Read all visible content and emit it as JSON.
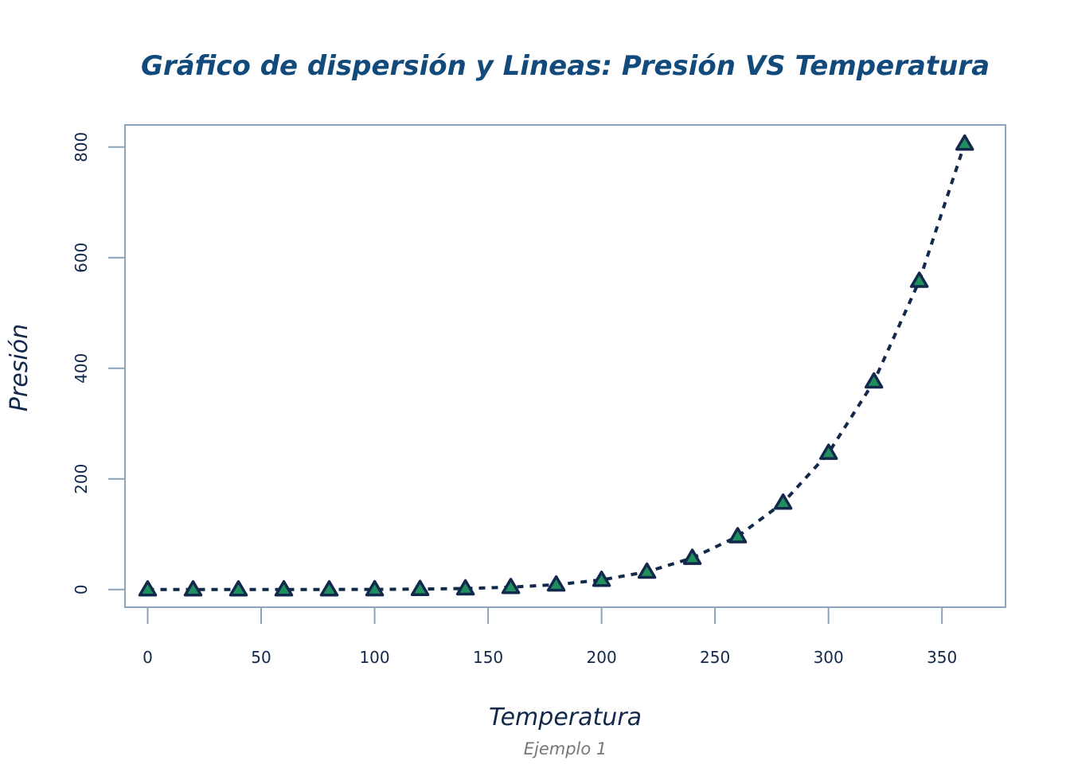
{
  "chart_data": {
    "type": "line",
    "title": "Gráfico de dispersión y Lineas: Presión VS Temperatura",
    "xlabel": "Temperatura",
    "ylabel": "Presión",
    "caption": "Ejemplo 1",
    "x": [
      0,
      20,
      40,
      60,
      80,
      100,
      120,
      140,
      160,
      180,
      200,
      220,
      240,
      260,
      280,
      300,
      320,
      340,
      360
    ],
    "series": [
      {
        "values": [
          0.0002,
          0.0012,
          0.006,
          0.03,
          0.09,
          0.27,
          0.75,
          1.85,
          4.2,
          8.8,
          17.3,
          32.1,
          57.0,
          96.0,
          157.0,
          247.0,
          376.0,
          558.0,
          806.0
        ],
        "line_style": "dashed",
        "marker": "triangle",
        "marker_fill": "#1f8f5f",
        "marker_edge": "#13294b",
        "line_color": "#13294b"
      }
    ],
    "xlim": [
      -10,
      378
    ],
    "ylim": [
      -32,
      840
    ],
    "xticks": [
      0,
      50,
      100,
      150,
      200,
      250,
      300,
      350
    ],
    "yticks": [
      0,
      200,
      400,
      600,
      800
    ],
    "grid": false,
    "legend": "none",
    "colors": {
      "title": "#134a7c",
      "axis_text": "#13294b",
      "frame": "#8ea2b8",
      "caption": "#777777"
    }
  }
}
